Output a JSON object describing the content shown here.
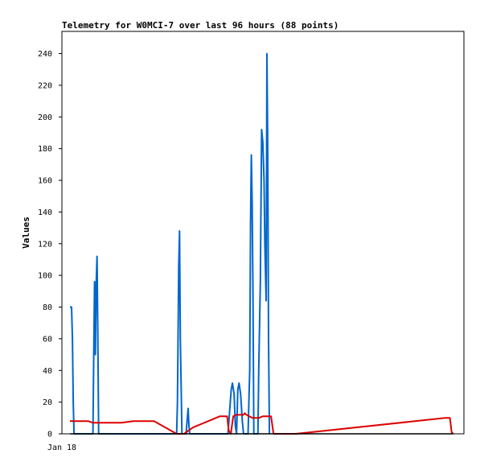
{
  "chart_data": {
    "type": "line",
    "title": "Telemetry for W0MCI-7 over last 96 hours (88 points)",
    "xlabel": "",
    "ylabel": "Values",
    "x_tick_labels": [
      "Jan 18"
    ],
    "y_ticks": [
      0,
      20,
      40,
      60,
      80,
      100,
      120,
      140,
      160,
      180,
      200,
      220,
      240
    ],
    "ylim": [
      0,
      254
    ],
    "x_unit": "hours",
    "xlim": [
      0,
      96
    ],
    "grid": false,
    "legend": "none",
    "series": [
      {
        "color": "#0066cc",
        "points": [
          [
            0.0,
            80
          ],
          [
            0.4,
            80
          ],
          [
            0.6,
            60
          ],
          [
            0.8,
            20
          ],
          [
            1.0,
            0
          ],
          [
            5.6,
            0
          ],
          [
            5.8,
            50
          ],
          [
            6.0,
            96
          ],
          [
            6.2,
            50
          ],
          [
            6.4,
            96
          ],
          [
            6.6,
            112
          ],
          [
            6.8,
            60
          ],
          [
            7.0,
            0
          ],
          [
            26.0,
            0
          ],
          [
            26.2,
            20
          ],
          [
            26.5,
            106
          ],
          [
            26.7,
            128
          ],
          [
            26.9,
            60
          ],
          [
            27.1,
            30
          ],
          [
            27.3,
            0
          ],
          [
            28.3,
            0
          ],
          [
            28.6,
            10
          ],
          [
            28.8,
            16
          ],
          [
            29.0,
            5
          ],
          [
            29.2,
            0
          ],
          [
            38.5,
            0
          ],
          [
            39.3,
            28
          ],
          [
            39.6,
            32
          ],
          [
            40.0,
            25
          ],
          [
            40.3,
            5
          ],
          [
            40.6,
            0
          ],
          [
            40.9,
            28
          ],
          [
            41.2,
            32
          ],
          [
            41.6,
            25
          ],
          [
            42.0,
            8
          ],
          [
            42.3,
            0
          ],
          [
            43.4,
            0
          ],
          [
            43.8,
            40
          ],
          [
            44.0,
            132
          ],
          [
            44.2,
            176
          ],
          [
            44.4,
            146
          ],
          [
            44.6,
            90
          ],
          [
            44.8,
            0
          ],
          [
            45.8,
            0
          ],
          [
            46.0,
            40
          ],
          [
            46.4,
            96
          ],
          [
            46.7,
            192
          ],
          [
            47.0,
            184
          ],
          [
            47.3,
            160
          ],
          [
            47.5,
            120
          ],
          [
            47.8,
            84
          ],
          [
            48.0,
            240
          ],
          [
            48.2,
            180
          ],
          [
            48.4,
            60
          ],
          [
            48.6,
            0
          ]
        ]
      },
      {
        "color": "#dd0000",
        "points": [
          [
            0.0,
            8
          ],
          [
            4.5,
            8
          ],
          [
            5.5,
            7
          ],
          [
            7.0,
            7
          ],
          [
            12.5,
            7
          ],
          [
            15.5,
            8
          ],
          [
            20.5,
            8
          ],
          [
            26.0,
            0
          ],
          [
            27.8,
            0
          ],
          [
            30.0,
            4
          ],
          [
            36.5,
            11
          ],
          [
            38.3,
            11
          ],
          [
            38.7,
            2
          ],
          [
            39.2,
            0
          ],
          [
            39.8,
            11
          ],
          [
            40.5,
            12
          ],
          [
            42.3,
            12
          ],
          [
            42.6,
            13
          ],
          [
            43.0,
            12
          ],
          [
            44.5,
            10
          ],
          [
            46.0,
            10
          ],
          [
            47.0,
            11
          ],
          [
            49.0,
            11
          ],
          [
            49.6,
            0
          ],
          [
            55.0,
            0
          ],
          [
            91.5,
            10
          ],
          [
            92.6,
            10
          ],
          [
            93.0,
            1
          ],
          [
            93.4,
            0
          ]
        ]
      },
      {
        "color": "#000000",
        "points": [
          [
            0.0,
            0
          ],
          [
            93.4,
            0
          ]
        ]
      }
    ]
  }
}
